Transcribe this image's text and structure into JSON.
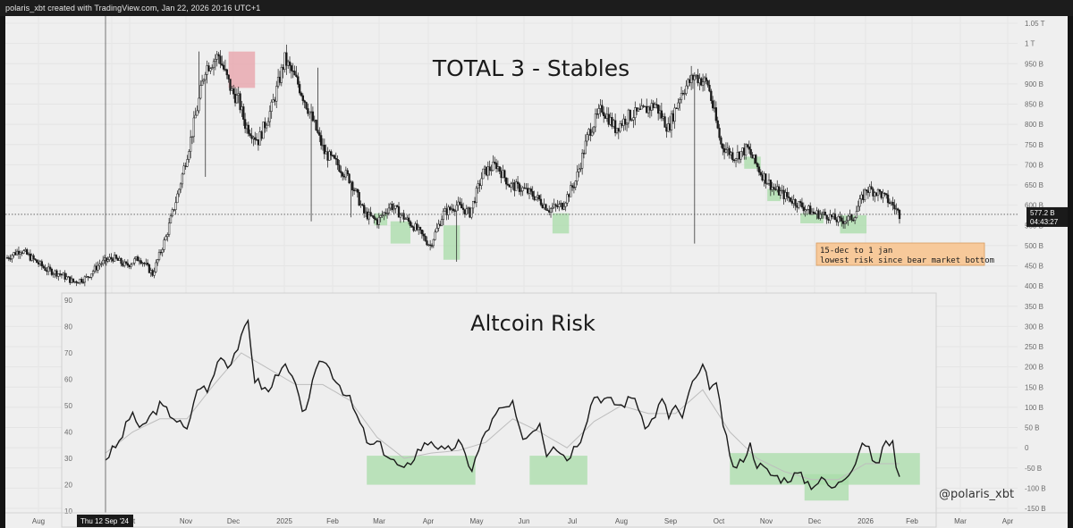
{
  "header": {
    "caption": "polaris_xbt created with TradingView.com, Jan 22, 2026 20:16 UTC+1"
  },
  "colors": {
    "background": "#efefef",
    "candle_up": "#f5f5f5",
    "candle_down": "#1a1a1a",
    "risk_line": "#1a1a1a",
    "ma_line": "#bdbdbd",
    "green_zone": "#a8dca8",
    "red_zone": "#e8a0a8",
    "annotation_bg": "#f7c99a",
    "price_badge": "#1a1a1a"
  },
  "chart_data": [
    {
      "type": "candlestick",
      "title": "TOTAL 3 - Stables",
      "y_axis_labels": [
        "1.05 T",
        "1 T",
        "950 B",
        "900 B",
        "850 B",
        "800 B",
        "750 B",
        "700 B",
        "650 B",
        "600 B",
        "550 B",
        "500 B",
        "450 B",
        "400 B",
        "350 B",
        "300 B",
        "250 B",
        "200 B",
        "150 B",
        "100 B",
        "50 B",
        "0",
        "-50 B",
        "-100 B",
        "-150 B"
      ],
      "y_axis_values": [
        1050,
        1000,
        950,
        900,
        850,
        800,
        750,
        700,
        650,
        600,
        550,
        500,
        450,
        400,
        350,
        300,
        250,
        200,
        150,
        100,
        50,
        0,
        -50,
        -100,
        -150
      ],
      "unit": "B",
      "current_price_label": "577.2 B",
      "current_price_value": 577.2,
      "countdown_label": "04:43:27",
      "x_axis_labels": [
        "Aug",
        "Sep",
        "Oct",
        "Nov",
        "Dec",
        "2025",
        "Feb",
        "Mar",
        "Apr",
        "May",
        "Jun",
        "Jul",
        "Aug",
        "Sep",
        "Oct",
        "Nov",
        "Dec",
        "2026",
        "Feb",
        "Mar",
        "Apr"
      ],
      "crosshair_date_label": "Thu 12 Sep '24",
      "price_anchors": [
        [
          0,
          470
        ],
        [
          2,
          490
        ],
        [
          6,
          440
        ],
        [
          8,
          430
        ],
        [
          10,
          410
        ],
        [
          12,
          420
        ],
        [
          14,
          455
        ],
        [
          16,
          470
        ],
        [
          18,
          450
        ],
        [
          20,
          470
        ],
        [
          22,
          430
        ],
        [
          24,
          520
        ],
        [
          26,
          640
        ],
        [
          28,
          780
        ],
        [
          30,
          940
        ],
        [
          32,
          970
        ],
        [
          34,
          880
        ],
        [
          35,
          860
        ],
        [
          36,
          800
        ],
        [
          38,
          760
        ],
        [
          40,
          840
        ],
        [
          42,
          960
        ],
        [
          44,
          900
        ],
        [
          46,
          820
        ],
        [
          48,
          730
        ],
        [
          50,
          700
        ],
        [
          52,
          660
        ],
        [
          54,
          580
        ],
        [
          56,
          560
        ],
        [
          58,
          600
        ],
        [
          60,
          570
        ],
        [
          62,
          540
        ],
        [
          64,
          500
        ],
        [
          66,
          580
        ],
        [
          68,
          600
        ],
        [
          70,
          580
        ],
        [
          72,
          680
        ],
        [
          74,
          700
        ],
        [
          76,
          650
        ],
        [
          78,
          640
        ],
        [
          80,
          620
        ],
        [
          82,
          590
        ],
        [
          84,
          600
        ],
        [
          86,
          660
        ],
        [
          88,
          780
        ],
        [
          90,
          840
        ],
        [
          92,
          790
        ],
        [
          94,
          820
        ],
        [
          96,
          830
        ],
        [
          98,
          850
        ],
        [
          100,
          790
        ],
        [
          102,
          880
        ],
        [
          104,
          920
        ],
        [
          106,
          900
        ],
        [
          108,
          750
        ],
        [
          110,
          720
        ],
        [
          112,
          740
        ],
        [
          114,
          680
        ],
        [
          116,
          640
        ],
        [
          118,
          620
        ],
        [
          120,
          600
        ],
        [
          122,
          580
        ],
        [
          124,
          575
        ],
        [
          126,
          560
        ],
        [
          128,
          570
        ],
        [
          130,
          640
        ],
        [
          132,
          630
        ],
        [
          134,
          600
        ],
        [
          135,
          577
        ]
      ],
      "wick_outliers": [
        [
          29,
          980
        ],
        [
          33,
          960
        ],
        [
          47,
          940
        ],
        [
          46,
          560
        ],
        [
          30,
          670
        ],
        [
          52,
          570
        ],
        [
          68,
          460
        ],
        [
          104,
          505
        ]
      ],
      "green_zones_value_ranges": [
        {
          "index_from": 55.5,
          "index_to": 57.5,
          "from": 550,
          "to": 580
        },
        {
          "index_from": 58.0,
          "index_to": 61.0,
          "from": 505,
          "to": 560
        },
        {
          "index_from": 66.0,
          "index_to": 68.5,
          "from": 465,
          "to": 550
        },
        {
          "index_from": 82.5,
          "index_to": 85.0,
          "from": 530,
          "to": 580
        },
        {
          "index_from": 111.5,
          "index_to": 114.0,
          "from": 690,
          "to": 720
        },
        {
          "index_from": 115.0,
          "index_to": 117.0,
          "from": 610,
          "to": 640
        },
        {
          "index_from": 120.0,
          "index_to": 123.5,
          "from": 555,
          "to": 580
        },
        {
          "index_from": 126.0,
          "index_to": 130.0,
          "from": 530,
          "to": 575
        }
      ],
      "red_zone_value_range": {
        "index_from": 33.5,
        "index_to": 37.5,
        "from": 890,
        "to": 980
      },
      "annotation": {
        "line1": "15-dec to 1 jan",
        "line2": "lowest risk since bear market bottom"
      }
    },
    {
      "type": "line",
      "title": "Altcoin Risk",
      "y_axis_labels": [
        "90",
        "80",
        "70",
        "60",
        "50",
        "40",
        "30",
        "20",
        "10"
      ],
      "y_axis_values": [
        90,
        80,
        70,
        60,
        50,
        40,
        30,
        20,
        10
      ],
      "ylim": [
        8,
        92
      ],
      "series": [
        {
          "name": "Altcoin Risk",
          "anchors": [
            [
              0,
              30
            ],
            [
              2,
              36
            ],
            [
              4,
              48
            ],
            [
              5,
              40
            ],
            [
              6,
              44
            ],
            [
              8,
              50
            ],
            [
              10,
              46
            ],
            [
              12,
              40
            ],
            [
              13,
              52
            ],
            [
              14,
              58
            ],
            [
              15,
              55
            ],
            [
              17,
              70
            ],
            [
              18,
              65
            ],
            [
              20,
              75
            ],
            [
              21,
              82
            ],
            [
              22,
              60
            ],
            [
              24,
              55
            ],
            [
              26,
              66
            ],
            [
              28,
              58
            ],
            [
              29,
              46
            ],
            [
              31,
              62
            ],
            [
              32,
              68
            ],
            [
              34,
              60
            ],
            [
              36,
              52
            ],
            [
              38,
              40
            ],
            [
              39,
              34
            ],
            [
              40,
              36
            ],
            [
              42,
              30
            ],
            [
              44,
              25
            ],
            [
              46,
              33
            ],
            [
              48,
              37
            ],
            [
              50,
              32
            ],
            [
              52,
              36
            ],
            [
              54,
              26
            ],
            [
              56,
              40
            ],
            [
              58,
              48
            ],
            [
              60,
              50
            ],
            [
              61,
              40
            ],
            [
              62,
              38
            ],
            [
              64,
              44
            ],
            [
              65,
              32
            ],
            [
              66,
              36
            ],
            [
              68,
              30
            ],
            [
              69,
              34
            ],
            [
              70,
              38
            ],
            [
              72,
              54
            ],
            [
              74,
              52
            ],
            [
              76,
              50
            ],
            [
              78,
              54
            ],
            [
              79,
              44
            ],
            [
              80,
              42
            ],
            [
              82,
              52
            ],
            [
              83,
              46
            ],
            [
              84,
              50
            ],
            [
              85,
              44
            ],
            [
              86,
              56
            ],
            [
              88,
              64
            ],
            [
              89,
              58
            ],
            [
              90,
              57
            ],
            [
              92,
              30
            ],
            [
              93,
              26
            ],
            [
              95,
              35
            ],
            [
              96,
              28
            ],
            [
              98,
              24
            ],
            [
              100,
              22
            ],
            [
              102,
              24
            ],
            [
              104,
              20
            ],
            [
              106,
              22
            ],
            [
              107,
              18
            ],
            [
              108,
              22
            ],
            [
              110,
              26
            ],
            [
              111,
              32
            ],
            [
              112,
              36
            ],
            [
              113,
              30
            ],
            [
              114,
              28
            ],
            [
              115,
              38
            ],
            [
              116,
              35
            ],
            [
              117,
              22
            ]
          ]
        },
        {
          "name": "Moving average",
          "anchors": [
            [
              0,
              32
            ],
            [
              4,
              40
            ],
            [
              8,
              45
            ],
            [
              12,
              45
            ],
            [
              16,
              58
            ],
            [
              20,
              70
            ],
            [
              24,
              64
            ],
            [
              28,
              58
            ],
            [
              32,
              58
            ],
            [
              36,
              52
            ],
            [
              40,
              38
            ],
            [
              44,
              30
            ],
            [
              48,
              32
            ],
            [
              52,
              33
            ],
            [
              56,
              36
            ],
            [
              60,
              45
            ],
            [
              64,
              40
            ],
            [
              68,
              34
            ],
            [
              72,
              44
            ],
            [
              76,
              50
            ],
            [
              80,
              47
            ],
            [
              84,
              47
            ],
            [
              88,
              56
            ],
            [
              92,
              40
            ],
            [
              96,
              30
            ],
            [
              100,
              25
            ],
            [
              104,
              22
            ],
            [
              108,
              22
            ],
            [
              112,
              28
            ],
            [
              117,
              28
            ]
          ]
        }
      ],
      "green_zones_value_ranges": [
        {
          "index_from": 38.5,
          "index_to": 54.5,
          "from": 20,
          "to": 31
        },
        {
          "index_from": 62.5,
          "index_to": 71.0,
          "from": 20,
          "to": 31
        },
        {
          "index_from": 92.0,
          "index_to": 120.0,
          "from": 20,
          "to": 32
        },
        {
          "index_from": 103.0,
          "index_to": 109.5,
          "from": 14,
          "to": 24
        }
      ]
    }
  ],
  "watermark": "@polaris_xbt"
}
